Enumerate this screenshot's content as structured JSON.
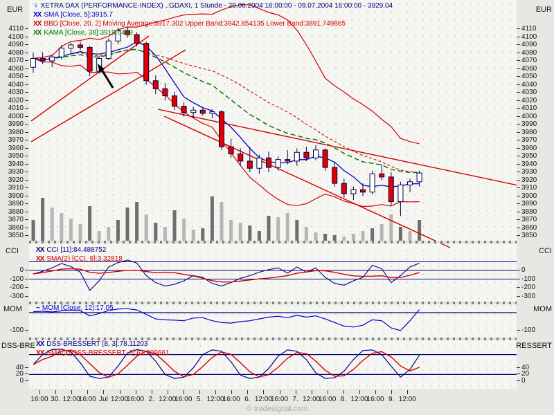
{
  "app": {
    "watermark": "© tradesignal.com"
  },
  "colors": {
    "navy": "#000080",
    "blue": "#0000c8",
    "red": "#d40000",
    "green": "#007a00",
    "candle_up": "#ffffff",
    "candle_down": "#e00000",
    "wick": "#00004a",
    "vol_dark": "#6e6e6e",
    "vol_light": "#b6b6b6",
    "plot_bg": "#f5f5f1",
    "margin_bg": "#e7e7e3",
    "watermark": "#ababab"
  },
  "panel_labels": {
    "main_left": "EUR",
    "main_right": "EUR",
    "cci_left": "CCI",
    "cci_right": "CCI",
    "mom_left": "MOM",
    "mom_right": "MOM",
    "dss_left": "DSS-BRE",
    "dss_right": "RESSERT"
  },
  "main_legend": [
    {
      "name": "legend-instrument",
      "icon": "♀",
      "color": "#000080",
      "text": "XETRA DAX (PERFORMANCE-INDEX) ,.GDAXI, 1 Stunde - 29.06.2004 16:00:00 - 09.07.2004 16:00:00 - 3929.04"
    },
    {
      "name": "legend-sma",
      "icon": "XX",
      "color": "#0000c8",
      "text": "SMA [Close, 5]:3915.7"
    },
    {
      "name": "legend-bbd",
      "icon": "XX",
      "color": "#d40000",
      "text": "BBD [Close, 20, 2] Moving Average:3917.302 Upper Band:3942.854135 Lower Band:3891.749865"
    },
    {
      "name": "legend-kama",
      "icon": "XX",
      "color": "#007a00",
      "text": "KAMA [Close, 38]:3919.6469"
    }
  ],
  "cci_legend": [
    {
      "name": "legend-cci",
      "icon": "XX",
      "color": "#000080",
      "text": "CCI [11]:84.488752"
    },
    {
      "name": "legend-cci-sma",
      "icon": "XX",
      "color": "#d40000",
      "text": "SMA(2) [CCI, 8]:3.32818"
    }
  ],
  "mom_legend": [
    {
      "name": "legend-mom",
      "icon": "~",
      "color": "#0000c8",
      "text": "MOM [Close, 12]:17.05"
    }
  ],
  "dss_legend": [
    {
      "name": "legend-dss",
      "icon": "XX",
      "color": "#000080",
      "text": "DSS-BRESSERT [8, 3]:78.11203"
    },
    {
      "name": "legend-dss-sma",
      "icon": "XX",
      "color": "#d40000",
      "text": "SMA(3)[DSS-BRESSERT, 3]:61.909661"
    }
  ],
  "x_axis": {
    "labels": [
      "16:00",
      "30.",
      "12:00",
      "16:00",
      "Jul",
      "12:00",
      "16:00",
      "2.",
      "12:00",
      "16:00",
      "5.",
      "12:00",
      "16:00",
      "6.",
      "12:00",
      "16:00",
      "7.",
      "12:00",
      "16:00",
      "8.",
      "12:00",
      "16:00",
      "9.",
      "12:00"
    ]
  },
  "chart_data": [
    {
      "type": "candlestick",
      "instrument": "XETRA DAX (PERFORMANCE-INDEX) .GDAXI",
      "period": "1 Stunde",
      "range": "29.06.2004 16:00:00 - 09.07.2004 16:00:00",
      "last_price": 3929.04,
      "ylabel": "EUR",
      "ylim": [
        3850,
        4110
      ],
      "y_tick_step": 10,
      "indicators": {
        "sma": {
          "label": "SMA [Close, 5]",
          "value": 3915.7
        },
        "bbd": {
          "label": "BBD [Close, 20, 2]",
          "moving_average": 3917.302,
          "upper_band": 3942.854135,
          "lower_band": 3891.749865
        },
        "kama": {
          "label": "KAMA [Close, 38]",
          "value": 3919.6469
        }
      },
      "candles": [
        [
          4062,
          4080,
          4055,
          4073
        ],
        [
          4073,
          4081,
          4066,
          4070
        ],
        [
          4070,
          4078,
          4062,
          4075
        ],
        [
          4075,
          4090,
          4072,
          4086
        ],
        [
          4086,
          4093,
          4079,
          4090
        ],
        [
          4090,
          4094,
          4083,
          4087
        ],
        [
          4087,
          4089,
          4051,
          4057
        ],
        [
          4057,
          4076,
          4054,
          4073
        ],
        [
          4073,
          4098,
          4071,
          4095
        ],
        [
          4095,
          4112,
          4091,
          4108
        ],
        [
          4108,
          4113,
          4099,
          4103
        ],
        [
          4103,
          4106,
          4088,
          4092
        ],
        [
          4092,
          4094,
          4040,
          4045
        ],
        [
          4045,
          4052,
          4028,
          4035
        ],
        [
          4035,
          4042,
          4020,
          4026
        ],
        [
          4026,
          4031,
          4008,
          4013
        ],
        [
          4013,
          4018,
          4000,
          4005
        ],
        [
          4005,
          4012,
          3998,
          4008
        ],
        [
          4008,
          4011,
          4001,
          4004
        ],
        [
          4004,
          4009,
          3998,
          4006
        ],
        [
          4006,
          4008,
          3958,
          3962
        ],
        [
          3962,
          3972,
          3948,
          3953
        ],
        [
          3953,
          3960,
          3938,
          3944
        ],
        [
          3944,
          3962,
          3930,
          3935
        ],
        [
          3935,
          3952,
          3928,
          3948
        ],
        [
          3948,
          3956,
          3930,
          3936
        ],
        [
          3936,
          3950,
          3932,
          3946
        ],
        [
          3946,
          3958,
          3940,
          3944
        ],
        [
          3944,
          3960,
          3938,
          3955
        ],
        [
          3955,
          3962,
          3944,
          3948
        ],
        [
          3948,
          3964,
          3945,
          3958
        ],
        [
          3958,
          3960,
          3932,
          3936
        ],
        [
          3936,
          3942,
          3912,
          3916
        ],
        [
          3916,
          3922,
          3898,
          3903
        ],
        [
          3903,
          3912,
          3895,
          3908
        ],
        [
          3908,
          3916,
          3900,
          3905
        ],
        [
          3905,
          3932,
          3902,
          3928
        ],
        [
          3928,
          3940,
          3920,
          3924
        ],
        [
          3924,
          3930,
          3888,
          3893
        ],
        [
          3893,
          3918,
          3875,
          3914
        ],
        [
          3914,
          3922,
          3905,
          3918
        ],
        [
          3918,
          3932,
          3912,
          3929
        ]
      ],
      "volume": {
        "values": [
          30,
          62,
          48,
          40,
          32,
          24,
          50,
          14,
          20,
          30,
          48,
          56,
          38,
          26,
          20,
          44,
          32,
          16,
          18,
          64,
          56,
          30,
          26,
          22,
          14,
          36,
          34,
          40,
          30,
          20,
          12,
          10,
          8,
          6,
          10,
          14,
          18,
          24,
          38,
          20,
          14,
          30
        ],
        "colors": [
          "d",
          "d",
          "l",
          "l",
          "l",
          "l",
          "d",
          "l",
          "l",
          "d",
          "d",
          "d",
          "l",
          "d",
          "l",
          "d",
          "l",
          "l",
          "d",
          "d",
          "l",
          "l",
          "l",
          "d",
          "d",
          "d",
          "l",
          "l",
          "d",
          "l",
          "l",
          "d",
          "d",
          "l",
          "l",
          "l",
          "d",
          "l",
          "l",
          "d",
          "l",
          "d"
        ]
      },
      "trendlines": [
        [
          45,
          175,
          215,
          52
        ],
        [
          45,
          205,
          268,
          72
        ],
        [
          228,
          158,
          748,
          268
        ],
        [
          237,
          168,
          650,
          358
        ]
      ],
      "arrow": {
        "tip": [
          141,
          92
        ],
        "tail": [
          163,
          127
        ]
      }
    },
    {
      "type": "line",
      "name": "CCI",
      "y_ticks": [
        0,
        -100,
        -200,
        -300
      ],
      "h_lines": [
        100,
        0,
        -100
      ],
      "series": [
        {
          "name": "CCI [11]",
          "current": 84.488752,
          "values": [
            -40,
            -10,
            30,
            80,
            45,
            -20,
            -230,
            -120,
            40,
            90,
            120,
            85,
            -60,
            -140,
            -180,
            -160,
            -120,
            -60,
            -80,
            -150,
            -180,
            -140,
            -90,
            -60,
            -20,
            10,
            30,
            -30,
            40,
            -20,
            30,
            -80,
            -150,
            -170,
            -120,
            -80,
            60,
            20,
            -140,
            -60,
            40,
            84
          ]
        },
        {
          "name": "SMA(2) [CCI, 8]",
          "current": 3.32818,
          "derived": "sma(CCI,8)"
        }
      ]
    },
    {
      "type": "line",
      "name": "MOM",
      "y_ticks": [
        -100
      ],
      "h_lines": [
        0
      ],
      "current": 17.05,
      "values": [
        5,
        8,
        4,
        10,
        14,
        10,
        -18,
        -5,
        12,
        20,
        22,
        15,
        -10,
        -35,
        -40,
        -42,
        -45,
        -30,
        -28,
        -45,
        -55,
        -58,
        -50,
        -45,
        -35,
        -25,
        -20,
        -28,
        -15,
        -25,
        -18,
        -35,
        -55,
        -75,
        -80,
        -70,
        -40,
        -45,
        -85,
        -100,
        -45,
        17
      ]
    },
    {
      "type": "line",
      "name": "DSS-BRESSERT",
      "y_ticks": [
        40,
        20,
        0
      ],
      "h_lines": [
        80,
        20
      ],
      "series": [
        {
          "name": "DSS-BRESSERT [8, 3]",
          "current": 78.11203,
          "values": [
            50,
            80,
            95,
            96,
            88,
            55,
            15,
            8,
            12,
            45,
            85,
            95,
            90,
            60,
            20,
            8,
            12,
            40,
            80,
            94,
            90,
            58,
            18,
            8,
            12,
            38,
            75,
            94,
            90,
            65,
            25,
            8,
            10,
            30,
            65,
            92,
            94,
            80,
            45,
            12,
            35,
            78
          ]
        },
        {
          "name": "SMA(3)[DSS-BRESSERT, 3]",
          "current": 61.909661,
          "derived": "sma(DSS,3)"
        }
      ]
    }
  ]
}
